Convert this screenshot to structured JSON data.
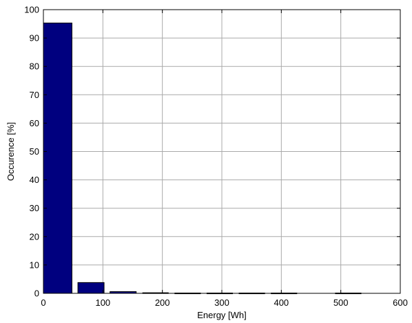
{
  "chart_data": {
    "type": "bar",
    "title": "",
    "xlabel": "Energy [Wh]",
    "ylabel": "Occurence [%]",
    "xlim": [
      0,
      600
    ],
    "ylim": [
      0,
      100
    ],
    "xticks": [
      0,
      100,
      200,
      300,
      400,
      500,
      600
    ],
    "yticks": [
      0,
      10,
      20,
      30,
      40,
      50,
      60,
      70,
      80,
      90,
      100
    ],
    "grid": true,
    "bar_color": "#00007F",
    "bar_edge_color": "#000000",
    "bars": [
      {
        "x_start": 0,
        "x_end": 48,
        "value": 95.3
      },
      {
        "x_start": 58,
        "x_end": 102,
        "value": 3.8
      },
      {
        "x_start": 112,
        "x_end": 156,
        "value": 0.6
      },
      {
        "x_start": 167,
        "x_end": 210,
        "value": 0.2
      },
      {
        "x_start": 221,
        "x_end": 264,
        "value": 0.1
      },
      {
        "x_start": 275,
        "x_end": 318,
        "value": 0.1
      },
      {
        "x_start": 329,
        "x_end": 372,
        "value": 0.1
      },
      {
        "x_start": 383,
        "x_end": 426,
        "value": 0.1
      },
      {
        "x_start": 491,
        "x_end": 534,
        "value": 0.1
      }
    ]
  }
}
